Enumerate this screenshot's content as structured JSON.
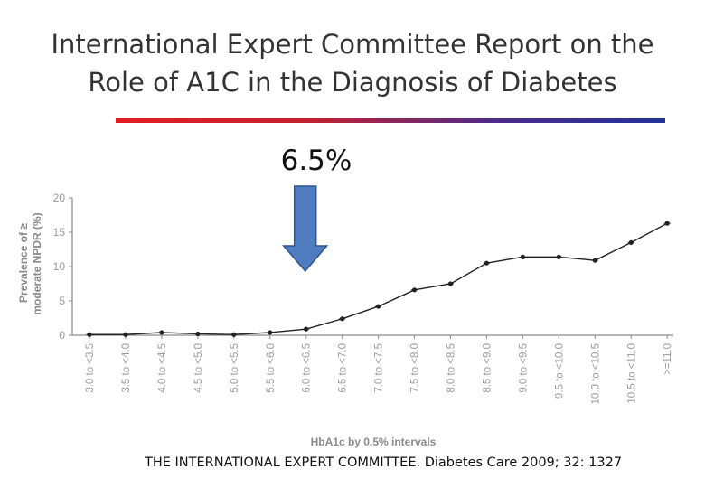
{
  "slide": {
    "title_line1": "International Expert Committee Report on the",
    "title_line2": "Role of A1C in the Diagnosis of Diabetes",
    "callout_label": "6.5%",
    "citation": "THE INTERNATIONAL EXPERT COMMITTEE. Diabetes Care 2009; 32: 1327",
    "colors": {
      "rule_start": "#e21d22",
      "rule_end": "#23319a",
      "arrow_fill": "#4f7cbf",
      "arrow_stroke": "#2e5591",
      "line": "#222222"
    },
    "icons": {
      "callout_arrow": "down-arrow-icon"
    }
  },
  "chart_data": {
    "type": "line",
    "ylabel_line1": "Prevalence of ≥",
    "ylabel_line2": "moderate NPDR (%)",
    "xlabel": "HbA1c by 0.5% intervals",
    "ylim": [
      0,
      20
    ],
    "yticks": [
      0,
      5,
      10,
      15,
      20
    ],
    "categories": [
      "3.0 to <3.5",
      "3.5 to <4.0",
      "4.0 to <4.5",
      "4.5 to <5.0",
      "5.0 to <5.5",
      "5.5 to <6.0",
      "6.0 to <6.5",
      "6.5 to <7.0",
      "7.0 to <7.5",
      "7.5 to <8.0",
      "8.0 to <8.5",
      "8.5 to <9.0",
      "9.0 to <9.5",
      "9.5 to <10.0",
      "10.0 to <10.5",
      "10.5 to <11.0",
      ">=11.0"
    ],
    "values": [
      0.1,
      0.1,
      0.4,
      0.2,
      0.1,
      0.4,
      0.9,
      2.4,
      4.2,
      6.6,
      7.5,
      10.5,
      11.4,
      11.4,
      10.9,
      13.5,
      16.3
    ],
    "arrow_at": "6.0 to <6.5",
    "grid": false
  }
}
